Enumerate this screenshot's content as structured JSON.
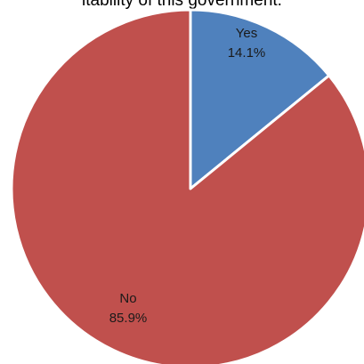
{
  "chart_data": {
    "type": "pie",
    "title": "itability of this government.",
    "slices": [
      {
        "label": "Yes",
        "value": 14.1,
        "percent_label": "14.1%",
        "color": "#4f81bd"
      },
      {
        "label": "No",
        "value": 85.9,
        "percent_label": "85.9%",
        "color": "#c0504d"
      }
    ],
    "start_angle": "top",
    "direction": "clockwise",
    "slice_border_color": "#ffffff"
  }
}
